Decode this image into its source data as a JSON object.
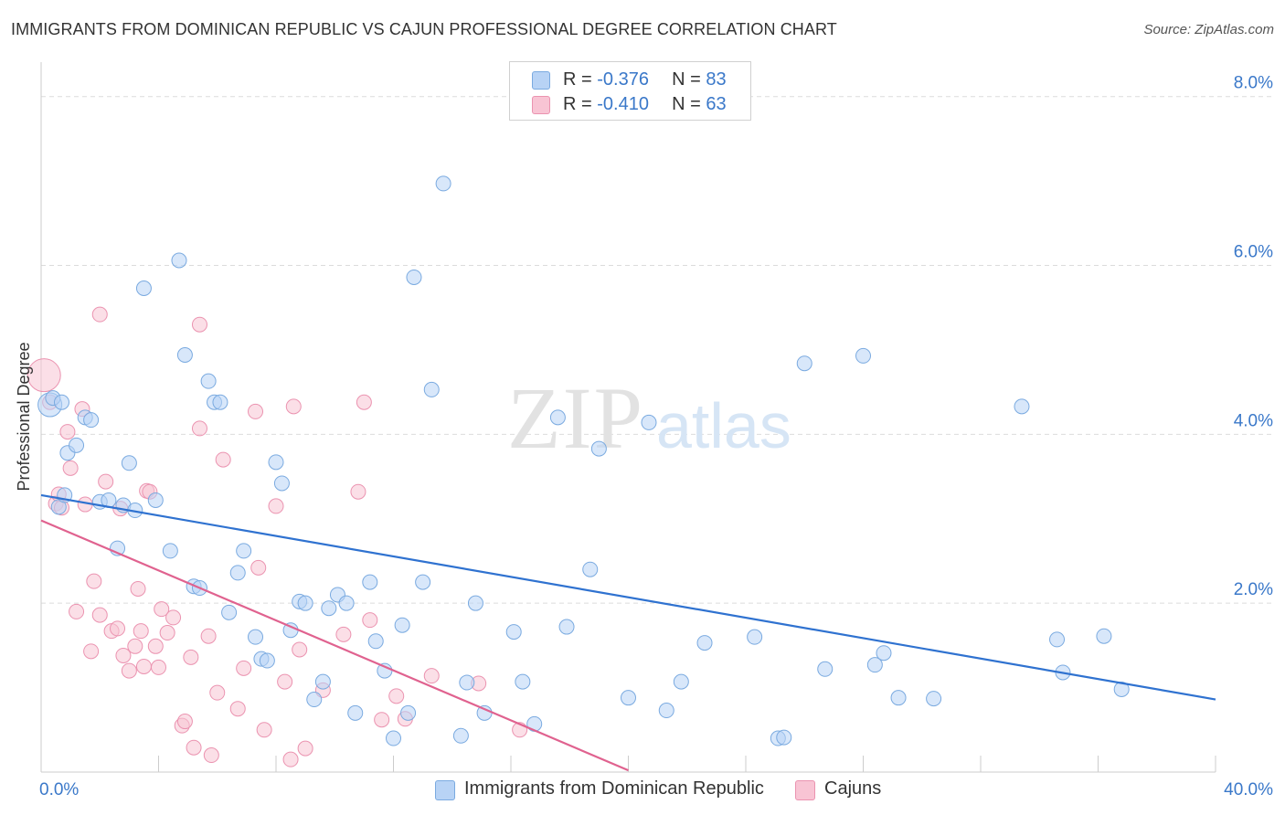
{
  "header": {
    "title": "IMMIGRANTS FROM DOMINICAN REPUBLIC VS CAJUN PROFESSIONAL DEGREE CORRELATION CHART",
    "source": "Source: ZipAtlas.com"
  },
  "watermark": {
    "zip": "ZIP",
    "atlas": "atlas"
  },
  "legend": [
    {
      "r_label": "R = ",
      "r_value": "-0.376",
      "n_label": "N = ",
      "n_value": "83"
    },
    {
      "r_label": "R = ",
      "r_value": "-0.410",
      "n_label": "N = ",
      "n_value": "63"
    }
  ],
  "colors": {
    "blue_fill": "#b8d3f5",
    "blue_stroke": "#7aaae0",
    "blue_line": "#2f72d0",
    "pink_fill": "#f8c4d4",
    "pink_stroke": "#eb93b0",
    "pink_line": "#e0628f",
    "tick_label": "#3a78c9",
    "grid": "#dcdcdc"
  },
  "chart_data": {
    "type": "scatter",
    "title": "IMMIGRANTS FROM DOMINICAN REPUBLIC VS CAJUN PROFESSIONAL DEGREE CORRELATION CHART",
    "xlabel": "",
    "ylabel": "Professional Degree",
    "xlim": [
      0,
      40
    ],
    "ylim": [
      0,
      8.3
    ],
    "x_tick_labels": [
      "0.0%",
      "40.0%"
    ],
    "y_ticks": [
      2,
      4,
      6,
      8
    ],
    "y_tick_labels": [
      "2.0%",
      "4.0%",
      "6.0%",
      "8.0%"
    ],
    "legend_position": "top-center",
    "series": [
      {
        "name": "Immigrants from Dominican Republic",
        "r": -0.376,
        "n": 83,
        "trend": {
          "x": [
            0,
            40
          ],
          "y": [
            3.28,
            0.86
          ]
        },
        "points": [
          [
            0.3,
            4.35
          ],
          [
            0.4,
            4.43
          ],
          [
            0.7,
            4.38
          ],
          [
            0.9,
            3.78
          ],
          [
            1.2,
            3.87
          ],
          [
            1.5,
            4.2
          ],
          [
            1.7,
            4.17
          ],
          [
            2.0,
            3.2
          ],
          [
            2.3,
            3.22
          ],
          [
            2.8,
            3.16
          ],
          [
            3.0,
            3.66
          ],
          [
            3.2,
            3.1
          ],
          [
            2.6,
            2.65
          ],
          [
            3.5,
            5.73
          ],
          [
            3.9,
            3.22
          ],
          [
            4.4,
            2.62
          ],
          [
            4.7,
            6.06
          ],
          [
            4.9,
            4.94
          ],
          [
            5.2,
            2.2
          ],
          [
            5.4,
            2.18
          ],
          [
            5.7,
            4.63
          ],
          [
            5.9,
            4.38
          ],
          [
            6.1,
            4.38
          ],
          [
            6.4,
            1.89
          ],
          [
            6.7,
            2.36
          ],
          [
            6.9,
            2.62
          ],
          [
            7.3,
            1.6
          ],
          [
            7.5,
            1.34
          ],
          [
            7.7,
            1.32
          ],
          [
            8.0,
            3.67
          ],
          [
            8.2,
            3.42
          ],
          [
            8.5,
            1.68
          ],
          [
            8.8,
            2.02
          ],
          [
            9.0,
            2.0
          ],
          [
            9.3,
            0.86
          ],
          [
            9.6,
            1.07
          ],
          [
            9.8,
            1.94
          ],
          [
            10.1,
            2.1
          ],
          [
            10.4,
            2.0
          ],
          [
            10.7,
            0.7
          ],
          [
            11.2,
            2.25
          ],
          [
            11.4,
            1.55
          ],
          [
            11.7,
            1.2
          ],
          [
            12.0,
            0.4
          ],
          [
            12.3,
            1.74
          ],
          [
            12.5,
            0.7
          ],
          [
            13.0,
            2.25
          ],
          [
            13.3,
            4.53
          ],
          [
            12.7,
            5.86
          ],
          [
            13.7,
            6.97
          ],
          [
            14.3,
            0.43
          ],
          [
            14.5,
            1.06
          ],
          [
            14.8,
            2.0
          ],
          [
            15.1,
            0.7
          ],
          [
            16.1,
            1.66
          ],
          [
            16.4,
            1.07
          ],
          [
            16.8,
            0.57
          ],
          [
            17.6,
            4.2
          ],
          [
            17.9,
            1.72
          ],
          [
            18.7,
            2.4
          ],
          [
            19.0,
            3.83
          ],
          [
            20.0,
            0.88
          ],
          [
            20.7,
            4.14
          ],
          [
            21.3,
            0.73
          ],
          [
            21.8,
            1.07
          ],
          [
            22.6,
            1.53
          ],
          [
            24.3,
            1.6
          ],
          [
            25.1,
            0.4
          ],
          [
            25.3,
            0.41
          ],
          [
            26.0,
            4.84
          ],
          [
            26.7,
            1.22
          ],
          [
            28.0,
            4.93
          ],
          [
            28.4,
            1.27
          ],
          [
            28.7,
            1.41
          ],
          [
            29.2,
            0.88
          ],
          [
            30.4,
            0.87
          ],
          [
            33.4,
            4.33
          ],
          [
            34.6,
            1.57
          ],
          [
            34.8,
            1.18
          ],
          [
            36.2,
            1.61
          ],
          [
            36.8,
            0.98
          ],
          [
            0.6,
            3.14
          ],
          [
            0.8,
            3.28
          ]
        ]
      },
      {
        "name": "Cajuns",
        "r": -0.41,
        "n": 63,
        "trend": {
          "x": [
            0,
            20
          ],
          "y": [
            2.98,
            0.02
          ]
        },
        "points": [
          [
            0.1,
            4.7
          ],
          [
            0.3,
            4.38
          ],
          [
            0.5,
            3.18
          ],
          [
            0.6,
            3.29
          ],
          [
            0.7,
            3.13
          ],
          [
            0.9,
            4.03
          ],
          [
            1.0,
            3.6
          ],
          [
            1.2,
            1.9
          ],
          [
            1.4,
            4.3
          ],
          [
            1.5,
            3.17
          ],
          [
            1.7,
            1.43
          ],
          [
            1.8,
            2.26
          ],
          [
            2.0,
            1.86
          ],
          [
            2.2,
            3.44
          ],
          [
            2.4,
            1.67
          ],
          [
            2.6,
            1.7
          ],
          [
            2.7,
            3.12
          ],
          [
            2.8,
            1.38
          ],
          [
            3.0,
            1.2
          ],
          [
            3.2,
            1.49
          ],
          [
            3.3,
            2.17
          ],
          [
            3.4,
            1.67
          ],
          [
            3.5,
            1.25
          ],
          [
            3.6,
            3.33
          ],
          [
            3.7,
            3.32
          ],
          [
            3.9,
            1.49
          ],
          [
            4.0,
            1.24
          ],
          [
            4.1,
            1.93
          ],
          [
            4.3,
            1.65
          ],
          [
            4.5,
            1.83
          ],
          [
            4.8,
            0.55
          ],
          [
            4.9,
            0.6
          ],
          [
            5.1,
            1.36
          ],
          [
            5.2,
            0.29
          ],
          [
            5.4,
            4.07
          ],
          [
            5.7,
            1.61
          ],
          [
            5.8,
            0.2
          ],
          [
            6.0,
            0.94
          ],
          [
            6.2,
            3.7
          ],
          [
            6.7,
            0.75
          ],
          [
            6.9,
            1.23
          ],
          [
            7.3,
            4.27
          ],
          [
            7.4,
            2.42
          ],
          [
            7.6,
            0.5
          ],
          [
            8.0,
            3.15
          ],
          [
            8.3,
            1.07
          ],
          [
            8.6,
            4.33
          ],
          [
            8.8,
            1.45
          ],
          [
            8.5,
            0.15
          ],
          [
            9.0,
            0.28
          ],
          [
            9.6,
            0.97
          ],
          [
            10.3,
            1.63
          ],
          [
            10.8,
            3.32
          ],
          [
            11.0,
            4.38
          ],
          [
            11.2,
            1.8
          ],
          [
            11.6,
            0.62
          ],
          [
            12.1,
            0.9
          ],
          [
            12.4,
            0.63
          ],
          [
            13.3,
            1.14
          ],
          [
            14.9,
            1.05
          ],
          [
            16.3,
            0.5
          ],
          [
            2.0,
            5.42
          ],
          [
            5.4,
            5.3
          ]
        ]
      }
    ]
  },
  "bottom_legend": [
    {
      "label": "Immigrants from Dominican Republic"
    },
    {
      "label": "Cajuns"
    }
  ]
}
